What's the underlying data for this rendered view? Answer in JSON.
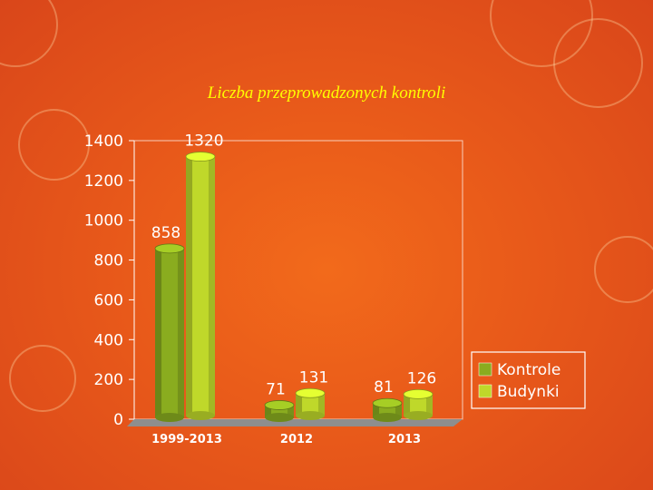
{
  "chart_data": {
    "type": "bar",
    "title": "Liczba przeprowadzonych kontroli",
    "categories": [
      "1999-2013",
      "2012",
      "2013"
    ],
    "series": [
      {
        "name": "Kontrole",
        "values": [
          858,
          71,
          81
        ],
        "color": "#8aac1f"
      },
      {
        "name": "Budynki",
        "values": [
          1320,
          131,
          126
        ],
        "color": "#bfd82a"
      }
    ],
    "ylim": [
      0,
      1400
    ],
    "yticks": [
      "0",
      "200",
      "400",
      "600",
      "800",
      "1000",
      "1200",
      "1400"
    ],
    "legend_position": "right",
    "grid": false
  },
  "colors": {
    "background": "#e8591a",
    "title": "#ffff00",
    "text": "#ffffff",
    "floor": "#8e8e8e"
  }
}
